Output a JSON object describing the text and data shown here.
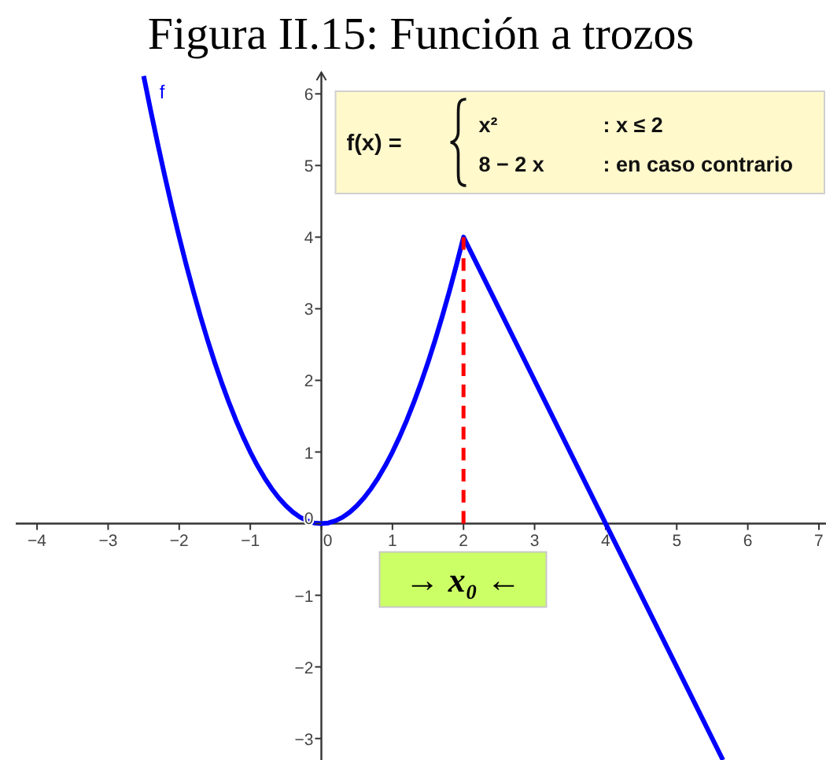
{
  "chart_data": {
    "type": "line",
    "title": "Figura II.15: Función a trozos",
    "xlim": [
      -4.3,
      7.1
    ],
    "ylim": [
      -3.3,
      6.3
    ],
    "xticks": [
      -4,
      -3,
      -2,
      -1,
      0,
      1,
      2,
      3,
      4,
      5,
      6,
      7
    ],
    "yticks": [
      -3,
      -2,
      -1,
      0,
      1,
      2,
      3,
      4,
      5,
      6
    ],
    "series": [
      {
        "name": "f",
        "color": "#0000ff",
        "x": [
          -2.5,
          -2.4,
          -2.3,
          -2.2,
          -2.1,
          -2,
          -1.9,
          -1.8,
          -1.7,
          -1.6,
          -1.5,
          -1.4,
          -1.3,
          -1.2,
          -1.1,
          -1,
          -0.9,
          -0.8,
          -0.7,
          -0.6,
          -0.5,
          -0.4,
          -0.3,
          -0.2,
          -0.1,
          0,
          0.1,
          0.2,
          0.3,
          0.4,
          0.5,
          0.6,
          0.7,
          0.8,
          0.9,
          1,
          1.1,
          1.2,
          1.3,
          1.4,
          1.5,
          1.6,
          1.7,
          1.8,
          1.9,
          2,
          3,
          4,
          5,
          5.65
        ],
        "values": [
          6.25,
          5.76,
          5.29,
          4.84,
          4.41,
          4,
          3.61,
          3.24,
          2.89,
          2.56,
          2.25,
          1.96,
          1.69,
          1.44,
          1.21,
          1,
          0.81,
          0.64,
          0.49,
          0.36,
          0.25,
          0.16,
          0.09,
          0.04,
          0.01,
          0,
          0.01,
          0.04,
          0.09,
          0.16,
          0.25,
          0.36,
          0.49,
          0.64,
          0.81,
          1,
          1.21,
          1.44,
          1.69,
          1.96,
          2.25,
          2.56,
          2.89,
          3.24,
          3.61,
          4,
          2,
          0,
          -2,
          -3.3
        ]
      },
      {
        "type": "line",
        "color": "#ff0000",
        "line_style": "dashed",
        "x": [
          2,
          2
        ],
        "values": [
          0,
          4
        ]
      }
    ],
    "annotations": [
      "f(x) =\tx²\t: x ≤ 2\n\t8 − 2 x\t: en caso contrario",
      "→ x₀ ←"
    ]
  }
}
